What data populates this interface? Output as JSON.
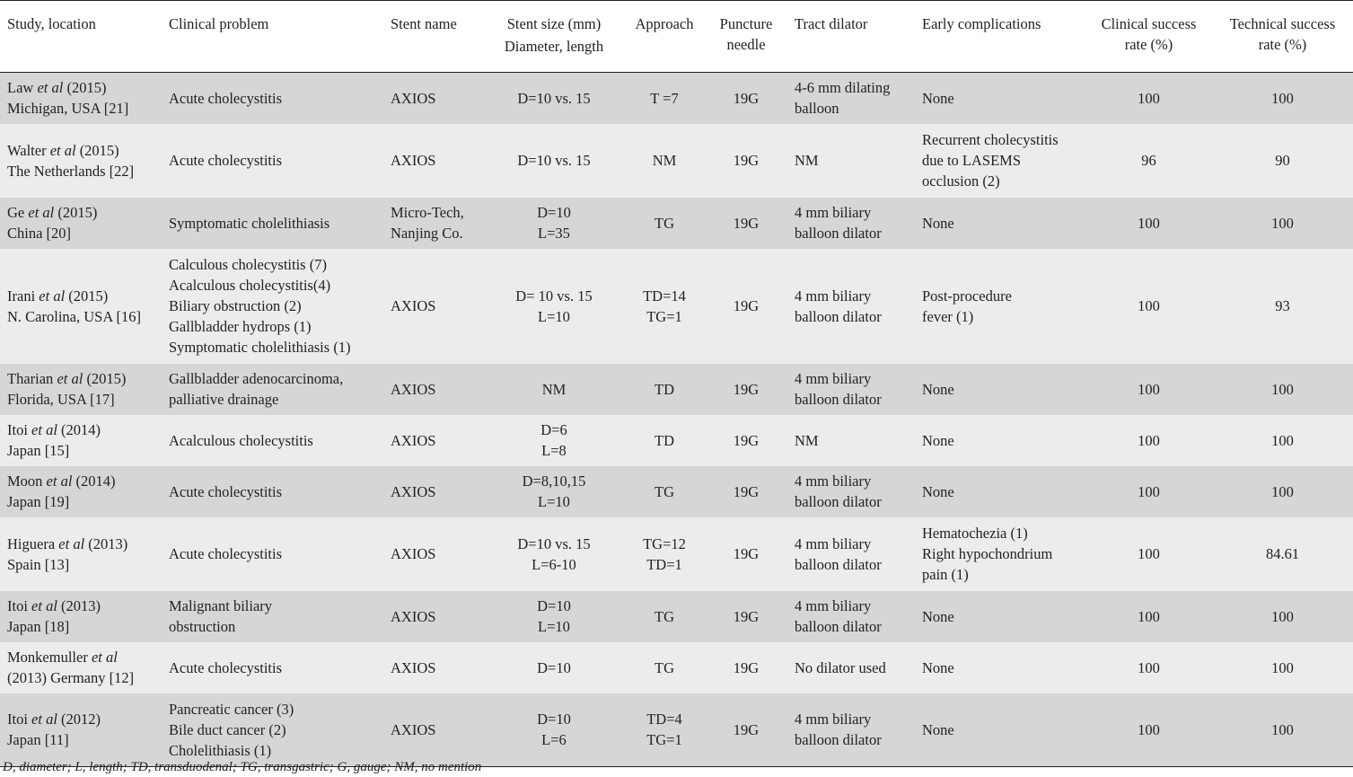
{
  "headers": {
    "study": "Study, location",
    "problem": "Clinical problem",
    "stent": "Stent name",
    "size_1": "Stent size (mm)",
    "size_2": "Diameter, length",
    "approach": "Approach",
    "needle_1": "Puncture",
    "needle_2": "needle",
    "dilator": "Tract dilator",
    "complications": "Early complications",
    "clinical_1": "Clinical success",
    "clinical_2": "rate (%)",
    "technical_1": "Technical success",
    "technical_2": "rate (%)"
  },
  "rows": [
    {
      "author": "Law",
      "etal": "et al",
      "year": " (2015)",
      "loc": "Michigan, USA [21]",
      "problem": [
        "Acute cholecystitis"
      ],
      "stent": [
        "AXIOS"
      ],
      "size": [
        "D=10 vs. 15"
      ],
      "approach": [
        "T =7"
      ],
      "needle": "19G",
      "dilator": [
        "4-6 mm dilating",
        "balloon"
      ],
      "complications": [
        "None"
      ],
      "clinical": "100",
      "technical": "100"
    },
    {
      "author": "Walter",
      "etal": "et al",
      "year": " (2015)",
      "loc": "The Netherlands [22]",
      "problem": [
        "Acute cholecystitis"
      ],
      "stent": [
        "AXIOS"
      ],
      "size": [
        "D=10 vs. 15"
      ],
      "approach": [
        "NM"
      ],
      "needle": "19G",
      "dilator": [
        "NM"
      ],
      "complications": [
        "Recurrent cholecystitis",
        "due to LASEMS",
        "occlusion (2)"
      ],
      "clinical": "96",
      "technical": "90"
    },
    {
      "author": "Ge",
      "etal": "et al",
      "year": " (2015)",
      "loc": "China [20]",
      "problem": [
        "Symptomatic cholelithiasis"
      ],
      "stent": [
        "Micro-Tech,",
        "Nanjing Co."
      ],
      "size": [
        "D=10",
        "L=35"
      ],
      "approach": [
        "TG"
      ],
      "needle": "19G",
      "dilator": [
        "4 mm biliary",
        "balloon dilator"
      ],
      "complications": [
        "None"
      ],
      "clinical": "100",
      "technical": "100"
    },
    {
      "author": "Irani",
      "etal": "et al",
      "year": " (2015)",
      "loc": "N. Carolina, USA [16]",
      "problem": [
        "Calculous cholecystitis (7)",
        "Acalculous cholecystitis(4)",
        "Biliary obstruction (2)",
        "Gallbladder hydrops (1)",
        "Symptomatic cholelithiasis (1)"
      ],
      "stent": [
        "AXIOS"
      ],
      "size": [
        "D= 10 vs. 15",
        "L=10"
      ],
      "approach": [
        "TD=14",
        "TG=1"
      ],
      "needle": "19G",
      "dilator": [
        "4 mm biliary",
        "balloon dilator"
      ],
      "complications": [
        "Post-procedure",
        "fever (1)"
      ],
      "clinical": "100",
      "technical": "93"
    },
    {
      "author": "Tharian",
      "etal": "et al",
      "year": " (2015)",
      "loc": "Florida, USA [17]",
      "problem": [
        "Gallbladder adenocarcinoma,",
        "palliative drainage"
      ],
      "stent": [
        "AXIOS"
      ],
      "size": [
        "NM"
      ],
      "approach": [
        "TD"
      ],
      "needle": "19G",
      "dilator": [
        "4 mm biliary",
        "balloon dilator"
      ],
      "complications": [
        "None"
      ],
      "clinical": "100",
      "technical": "100"
    },
    {
      "author": "Itoi",
      "etal": "et al",
      "year": " (2014)",
      "loc": "Japan [15]",
      "problem": [
        "Acalculous cholecystitis"
      ],
      "stent": [
        "AXIOS"
      ],
      "size": [
        "D=6",
        "L=8"
      ],
      "approach": [
        "TD"
      ],
      "needle": "19G",
      "dilator": [
        "NM"
      ],
      "complications": [
        "None"
      ],
      "clinical": "100",
      "technical": "100"
    },
    {
      "author": "Moon",
      "etal": "et al",
      "year": " (2014)",
      "loc": "Japan [19]",
      "problem": [
        "Acute cholecystitis"
      ],
      "stent": [
        "AXIOS"
      ],
      "size": [
        "D=8,10,15",
        "L=10"
      ],
      "approach": [
        "TG"
      ],
      "needle": "19G",
      "dilator": [
        "4 mm biliary",
        "balloon dilator"
      ],
      "complications": [
        "None"
      ],
      "clinical": "100",
      "technical": "100"
    },
    {
      "author": "Higuera",
      "etal": "et al",
      "year": " (2013)",
      "loc": "Spain [13]",
      "problem": [
        "Acute cholecystitis"
      ],
      "stent": [
        "AXIOS"
      ],
      "size": [
        "D=10 vs. 15",
        "L=6-10"
      ],
      "approach": [
        "TG=12",
        "TD=1"
      ],
      "needle": "19G",
      "dilator": [
        "4 mm biliary",
        "balloon dilator"
      ],
      "complications": [
        "Hematochezia (1)",
        "Right hypochondrium",
        "pain (1)"
      ],
      "clinical": "100",
      "technical": "84.61"
    },
    {
      "author": "Itoi",
      "etal": "et al",
      "year": " (2013)",
      "loc": "Japan [18]",
      "problem": [
        "Malignant biliary",
        "obstruction"
      ],
      "stent": [
        "AXIOS"
      ],
      "size": [
        "D=10",
        "L=10"
      ],
      "approach": [
        "TG"
      ],
      "needle": "19G",
      "dilator": [
        "4 mm biliary",
        "balloon dilator"
      ],
      "complications": [
        "None"
      ],
      "clinical": "100",
      "technical": "100"
    },
    {
      "author": "Monkemuller",
      "etal": "et al",
      "year": "",
      "loc": "(2013) Germany [12]",
      "problem": [
        "Acute cholecystitis"
      ],
      "stent": [
        "AXIOS"
      ],
      "size": [
        "D=10"
      ],
      "approach": [
        "TG"
      ],
      "needle": "19G",
      "dilator": [
        "No dilator used"
      ],
      "complications": [
        "None"
      ],
      "clinical": "100",
      "technical": "100"
    },
    {
      "author": "Itoi",
      "etal": "et al",
      "year": " (2012)",
      "loc": "Japan [11]",
      "problem": [
        "Pancreatic cancer (3)",
        "Bile duct cancer (2)",
        "Cholelithiasis (1)"
      ],
      "stent": [
        "AXIOS"
      ],
      "size": [
        "D=10",
        "L=6"
      ],
      "approach": [
        "TD=4",
        "TG=1"
      ],
      "needle": "19G",
      "dilator": [
        "4 mm biliary",
        "balloon dilator"
      ],
      "complications": [
        "None"
      ],
      "clinical": "100",
      "technical": "100"
    }
  ],
  "footnote": "D, diameter; L, length; TD, transduodenal; TG, transgastric; G, gauge; NM, no mention"
}
